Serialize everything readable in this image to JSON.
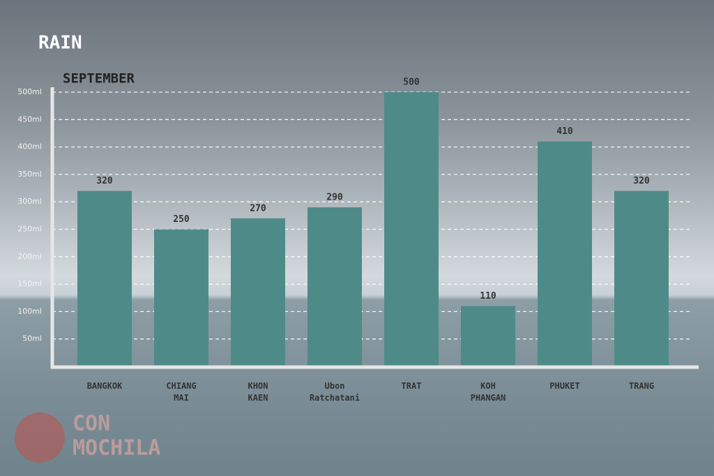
{
  "chart_data": {
    "type": "bar",
    "title": "RAIN",
    "subtitle": "SEPTEMBER",
    "categories": [
      "BANGKOK",
      "CHIANG MAI",
      "KHON KAEN",
      "Ubon Ratchatani",
      "TRAT",
      "KOH PHANGAN",
      "PHUKET",
      "TRANG"
    ],
    "values": [
      320,
      250,
      270,
      290,
      500,
      110,
      410,
      320
    ],
    "color": "#4e8b88",
    "ylim": [
      0,
      500
    ],
    "yticks": [
      {
        "value": 50,
        "label": "50ml"
      },
      {
        "value": 100,
        "label": "100ml"
      },
      {
        "value": 150,
        "label": "150ml"
      },
      {
        "value": 200,
        "label": "200ml"
      },
      {
        "value": 250,
        "label": "250ml"
      },
      {
        "value": 300,
        "label": "300ml"
      },
      {
        "value": 350,
        "label": "350ml"
      },
      {
        "value": 400,
        "label": "400ml"
      },
      {
        "value": 450,
        "label": "450ml"
      },
      {
        "value": 500,
        "label": "500ml"
      }
    ],
    "grid": true
  },
  "watermark": [
    "CON",
    "MOCHILA"
  ]
}
